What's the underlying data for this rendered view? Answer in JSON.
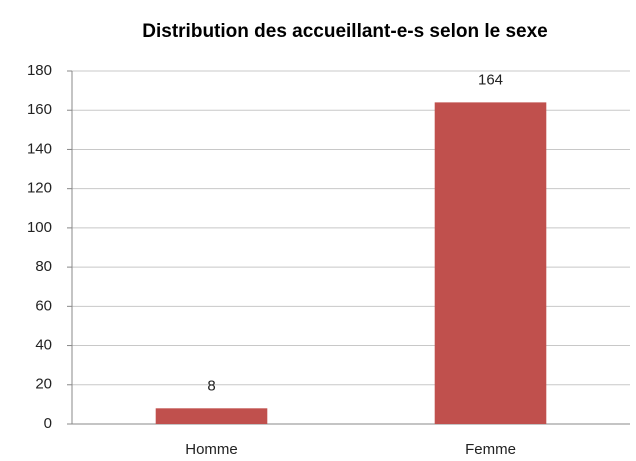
{
  "chart_data": {
    "type": "bar",
    "title": "Distribution des accueillant-e-s selon le sexe",
    "categories": [
      "Homme",
      "Femme"
    ],
    "values": [
      8,
      164
    ],
    "color": "#c0504d",
    "ylim": [
      0,
      180
    ],
    "yticks": [
      0,
      20,
      40,
      60,
      80,
      100,
      120,
      140,
      160,
      180
    ],
    "grid": true
  }
}
